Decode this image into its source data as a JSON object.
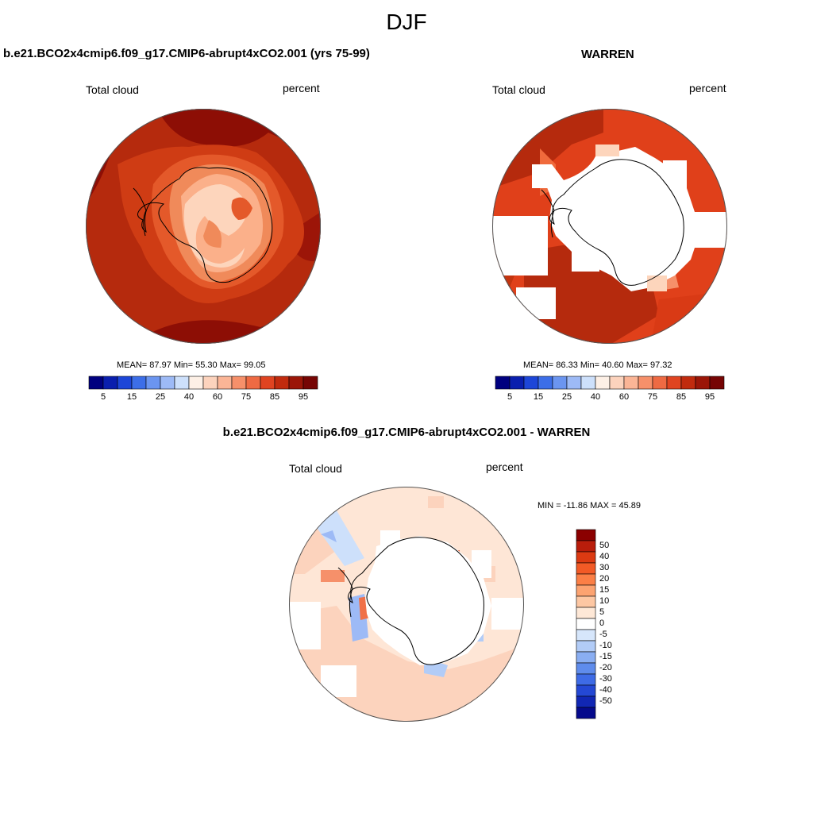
{
  "season_title": "DJF",
  "panels": [
    {
      "title": "b.e21.BCO2x4cmip6.f09_g17.CMIP6-abrupt4xCO2.001 (yrs 75-99)",
      "variable": "Total cloud",
      "units": "percent",
      "stats": {
        "mean_label": "MEAN=",
        "mean": "87.97",
        "min_label": "Min=",
        "min": "55.30",
        "max_label": "Max=",
        "max": "99.05"
      }
    },
    {
      "title": "WARREN",
      "variable": "Total cloud",
      "units": "percent",
      "stats": {
        "mean_label": "MEAN=",
        "mean": "86.33",
        "min_label": "Min=",
        "min": "40.60",
        "max_label": "Max=",
        "max": "97.32"
      }
    },
    {
      "title": "b.e21.BCO2x4cmip6.f09_g17.CMIP6-abrupt4xCO2.001 - WARREN",
      "variable": "Total cloud",
      "units": "percent",
      "minmax": "MIN = -11.86 MAX =  45.89"
    }
  ],
  "colorbar_horizontal": {
    "colors": [
      "#00007f",
      "#0a1fae",
      "#1d46d8",
      "#3c6ee8",
      "#6b95f0",
      "#9dbaf6",
      "#cde0fb",
      "#fdf0e6",
      "#fcd3bd",
      "#fbb596",
      "#f6906a",
      "#ee6a43",
      "#e04421",
      "#c12b0e",
      "#9b1608",
      "#760504"
    ],
    "tick_labels": [
      "5",
      "15",
      "25",
      "40",
      "60",
      "75",
      "85",
      "95"
    ]
  },
  "colorbar_vertical": {
    "colors": [
      "#8b0000",
      "#b91d0b",
      "#dc3a12",
      "#f25a26",
      "#fb7f46",
      "#fca371",
      "#fdc7a3",
      "#fee8d7",
      "#ffffff",
      "#d6e6fb",
      "#b2ccf7",
      "#8aaef2",
      "#5f8cec",
      "#3e6be6",
      "#2448d4",
      "#1127b4",
      "#050a8c"
    ],
    "tick_labels": [
      "50",
      "40",
      "30",
      "20",
      "15",
      "10",
      "5",
      "0",
      "-5",
      "-10",
      "-15",
      "-20",
      "-30",
      "-40",
      "-50"
    ]
  }
}
